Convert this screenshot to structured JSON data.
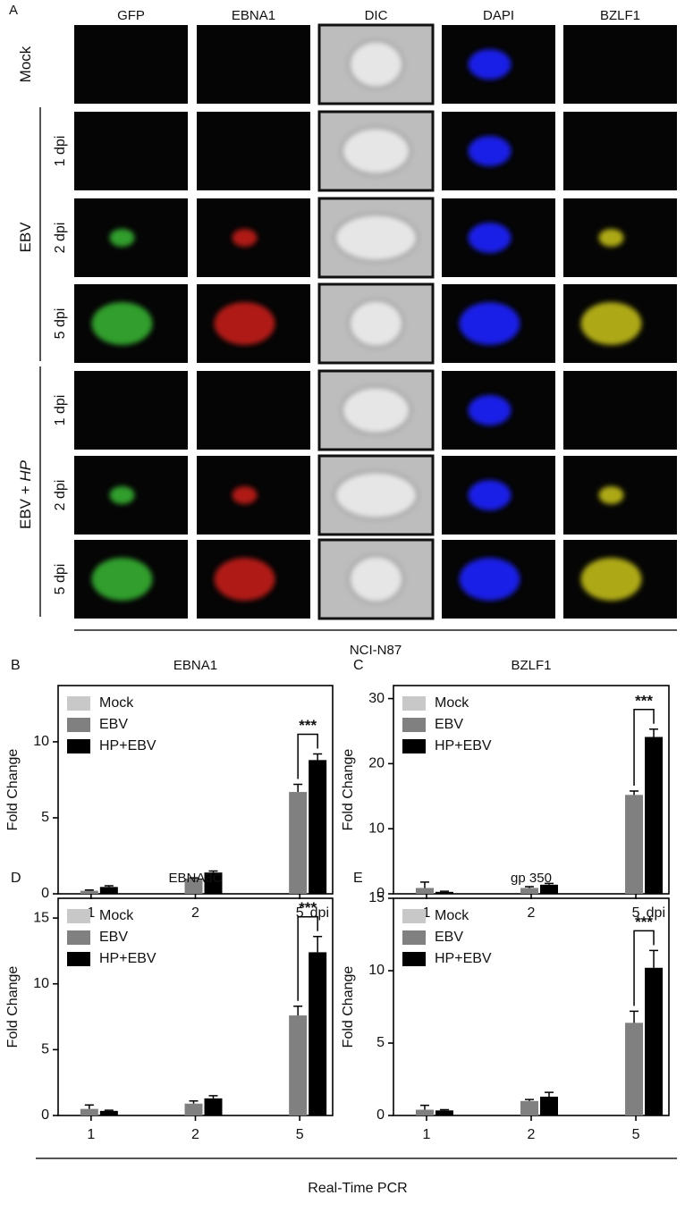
{
  "panel_a": {
    "label": "A",
    "columns": [
      "GFP",
      "EBNA1",
      "DIC",
      "DAPI",
      "BZLF1"
    ],
    "groups": [
      {
        "label": [
          "Mock"
        ],
        "rows": []
      },
      {
        "label": [
          "EBV"
        ],
        "rows": [
          "1 dpi",
          "2 dpi",
          "5 dpi"
        ]
      },
      {
        "label": [
          "EBV + ",
          "HP"
        ],
        "rows": [
          "1 dpi",
          "2 dpi",
          "5 dpi"
        ]
      }
    ],
    "footer": "NCI-N87"
  },
  "chart_data": [
    {
      "type": "bar",
      "panel": "B",
      "title": "EBNA1",
      "ylabel": "Fold Change",
      "xlabel": "dpi",
      "categories": [
        "1",
        "2",
        "5"
      ],
      "legend": "upper left",
      "series": [
        {
          "name": "Mock",
          "color": "#c8c8c8",
          "values": [
            null,
            null,
            null
          ],
          "errors": [
            null,
            null,
            null
          ]
        },
        {
          "name": "EBV",
          "color": "#808080",
          "values": [
            0.2,
            1.0,
            6.7
          ],
          "errors": [
            0.05,
            0.05,
            0.5
          ]
        },
        {
          "name": "HP+EBV",
          "color": "#000000",
          "values": [
            0.45,
            1.4,
            8.8
          ],
          "errors": [
            0.08,
            0.1,
            0.4
          ]
        }
      ],
      "ylim": [
        0,
        13.7
      ],
      "yticks": [
        0,
        5,
        10
      ],
      "annotation": "***"
    },
    {
      "type": "bar",
      "panel": "C",
      "title": "BZLF1",
      "ylabel": "Fold Change",
      "xlabel": "dpi",
      "categories": [
        "1",
        "2",
        "5"
      ],
      "legend": "upper left",
      "series": [
        {
          "name": "Mock",
          "color": "#c8c8c8",
          "values": [
            null,
            null,
            null
          ],
          "errors": [
            null,
            null,
            null
          ]
        },
        {
          "name": "EBV",
          "color": "#808080",
          "values": [
            0.9,
            0.9,
            15.2
          ],
          "errors": [
            0.9,
            0.2,
            0.6
          ]
        },
        {
          "name": "HP+EBV",
          "color": "#000000",
          "values": [
            0.3,
            1.4,
            24.1
          ],
          "errors": [
            0.1,
            0.2,
            1.2
          ]
        }
      ],
      "ylim": [
        0,
        32
      ],
      "yticks": [
        0,
        10,
        20,
        30
      ],
      "annotation": "***"
    },
    {
      "type": "bar",
      "panel": "D",
      "title": "EBNA3C",
      "ylabel": "Fold Change",
      "categories": [
        "1",
        "2",
        "5"
      ],
      "legend": "upper left",
      "series": [
        {
          "name": "Mock",
          "color": "#c8c8c8",
          "values": [
            null,
            null,
            null
          ],
          "errors": [
            null,
            null,
            null
          ]
        },
        {
          "name": "EBV",
          "color": "#808080",
          "values": [
            0.5,
            0.9,
            7.6
          ],
          "errors": [
            0.3,
            0.2,
            0.7
          ]
        },
        {
          "name": "HP+EBV",
          "color": "#000000",
          "values": [
            0.35,
            1.3,
            12.4
          ],
          "errors": [
            0.05,
            0.2,
            1.2
          ]
        }
      ],
      "ylim": [
        0,
        16.5
      ],
      "yticks": [
        0,
        5,
        10,
        15
      ],
      "annotation": "***"
    },
    {
      "type": "bar",
      "panel": "E",
      "title": "gp 350",
      "ylabel": "Fold Change",
      "categories": [
        "1",
        "2",
        "5"
      ],
      "legend": "upper left",
      "series": [
        {
          "name": "Mock",
          "color": "#c8c8c8",
          "values": [
            null,
            null,
            null
          ],
          "errors": [
            null,
            null,
            null
          ]
        },
        {
          "name": "EBV",
          "color": "#808080",
          "values": [
            0.4,
            1.0,
            6.4
          ],
          "errors": [
            0.3,
            0.1,
            0.8
          ]
        },
        {
          "name": "HP+EBV",
          "color": "#000000",
          "values": [
            0.35,
            1.3,
            10.2
          ],
          "errors": [
            0.05,
            0.3,
            1.2
          ]
        }
      ],
      "ylim": [
        0,
        15
      ],
      "yticks": [
        0,
        5,
        10,
        15
      ],
      "annotation": "***"
    }
  ],
  "footer": "Real-Time PCR"
}
